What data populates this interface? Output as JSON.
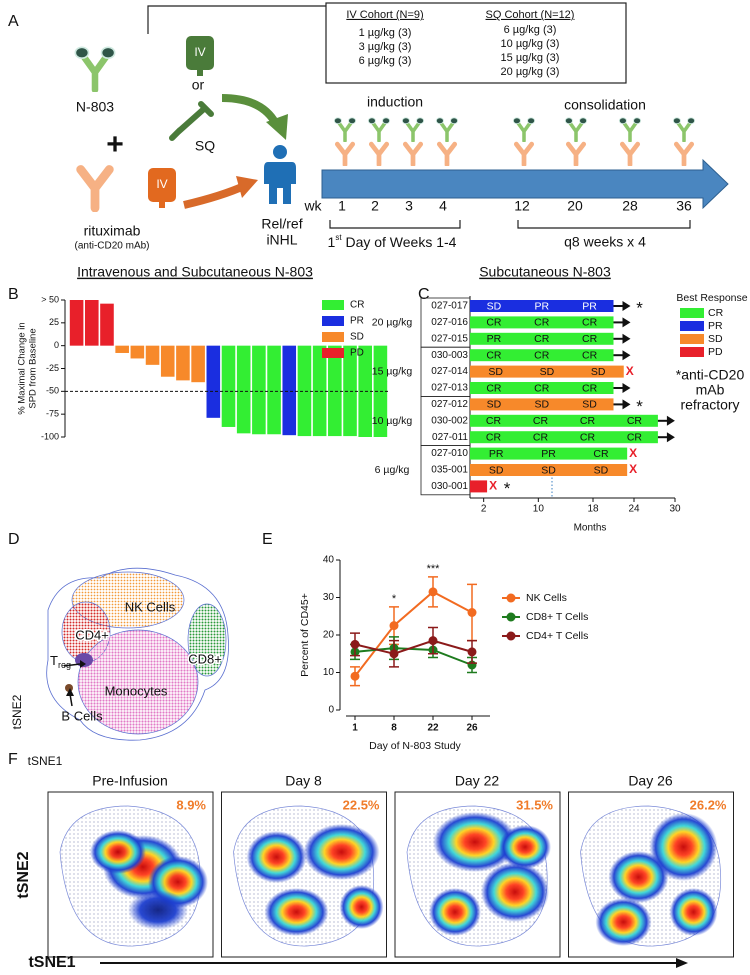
{
  "panel_a": {
    "letter": "A",
    "iv_cohort": {
      "title": "IV Cohort (N=9)",
      "doses": [
        "1 µg/kg (3)",
        "3 µg/kg (3)",
        "6 µg/kg (3)"
      ]
    },
    "sq_cohort": {
      "title": "SQ Cohort (N=12)",
      "doses": [
        "6 µg/kg (3)",
        "10 µg/kg (3)",
        "15 µg/kg (3)",
        "20 µg/kg (3)"
      ]
    },
    "n803": "N-803",
    "plus": "+",
    "rituximab": "rituximab",
    "rituximab_note": "(anti-CD20 mAb)",
    "iv_label": "IV",
    "or": "or",
    "sq_label": "SQ",
    "patient": [
      "Rel/ref",
      "iNHL"
    ],
    "phases": [
      "induction",
      "consolidation"
    ],
    "week_prefix": "wk",
    "weeks": [
      "1",
      "2",
      "3",
      "4",
      "12",
      "20",
      "28",
      "36"
    ],
    "induction_note": {
      "ordinal": "1",
      "suffix": "st",
      "text": " Day of Weeks 1-4"
    },
    "consolidation_note": "q8 weeks x 4"
  },
  "panel_b": {
    "letter": "B",
    "type": "bar",
    "title": "Intravenous and Subcutaneous N-803",
    "y_label": [
      "% Maximal Change in",
      "SPD from Baseline"
    ],
    "values": [
      50,
      50,
      46,
      -8,
      -14,
      -21,
      -34,
      -38,
      -40,
      -79,
      -89,
      -96,
      -97,
      -97,
      -98,
      -99,
      -99,
      -99,
      -99,
      -100,
      -100
    ],
    "colors": [
      "#e8202a",
      "#e8202a",
      "#e8202a",
      "#f7892a",
      "#f7892a",
      "#f7892a",
      "#f7892a",
      "#f7892a",
      "#f7892a",
      "#1a2ee0",
      "#33ee33",
      "#33ee33",
      "#33ee33",
      "#33ee33",
      "#1a2ee0",
      "#33ee33",
      "#33ee33",
      "#33ee33",
      "#33ee33",
      "#33ee33",
      "#33ee33"
    ],
    "ylim": [
      -100,
      50
    ],
    "yticks": [
      {
        "value": 50,
        "label": "> 50"
      },
      25,
      0,
      -25,
      -50,
      -75,
      -100
    ],
    "reference_line": -50,
    "legend": [
      {
        "name": "CR",
        "color": "#33ee33"
      },
      {
        "name": "PR",
        "color": "#1a2ee0"
      },
      {
        "name": "SD",
        "color": "#f7892a"
      },
      {
        "name": "PD",
        "color": "#e8202a"
      }
    ]
  },
  "panel_c": {
    "letter": "C",
    "type": "swimmer",
    "title": "Subcutaneous N-803",
    "x_label": "Months",
    "xlim": [
      0,
      30
    ],
    "xticks": [
      2,
      10,
      18,
      24,
      30
    ],
    "reference_line": 12,
    "legend_title": "Best Response",
    "legend": [
      {
        "name": "CR",
        "color": "#33ee33"
      },
      {
        "name": "PR",
        "color": "#1a2ee0"
      },
      {
        "name": "SD",
        "color": "#f7892a"
      },
      {
        "name": "PD",
        "color": "#e8202a"
      }
    ],
    "note": [
      "*anti-CD20",
      "mAb",
      "refractory"
    ],
    "groups": [
      {
        "label": "20 µg/kg",
        "rows": [
          {
            "id": "027-017",
            "color": "#1a2ee0",
            "months": 21,
            "segments": [
              "SD",
              "PR",
              "PR"
            ],
            "ongoing": true,
            "marker": "*"
          },
          {
            "id": "027-016",
            "color": "#33ee33",
            "months": 21,
            "segments": [
              "CR",
              "CR",
              "CR"
            ],
            "ongoing": true
          },
          {
            "id": "027-015",
            "color": "#33ee33",
            "months": 21,
            "segments": [
              "PR",
              "CR",
              "CR"
            ],
            "ongoing": true
          }
        ]
      },
      {
        "label": "15 µg/kg",
        "rows": [
          {
            "id": "030-003",
            "color": "#33ee33",
            "months": 21,
            "segments": [
              "CR",
              "CR",
              "CR"
            ],
            "ongoing": true
          },
          {
            "id": "027-014",
            "color": "#f7892a",
            "months": 22.5,
            "segments": [
              "SD",
              "SD",
              "SD"
            ],
            "stop": "X"
          },
          {
            "id": "027-013",
            "color": "#33ee33",
            "months": 21,
            "segments": [
              "CR",
              "CR",
              "CR"
            ],
            "ongoing": true
          }
        ]
      },
      {
        "label": "10 µg/kg",
        "rows": [
          {
            "id": "027-012",
            "color": "#f7892a",
            "months": 21,
            "segments": [
              "SD",
              "SD",
              "SD"
            ],
            "ongoing": true,
            "marker": "*"
          },
          {
            "id": "030-002",
            "color": "#33ee33",
            "months": 27.5,
            "segments": [
              "CR",
              "CR",
              "CR",
              "CR"
            ],
            "ongoing": true
          },
          {
            "id": "027-011",
            "color": "#33ee33",
            "months": 27.5,
            "segments": [
              "CR",
              "CR",
              "CR",
              "CR"
            ],
            "ongoing": true
          }
        ]
      },
      {
        "label": "6 µg/kg",
        "rows": [
          {
            "id": "027-010",
            "color": "#33ee33",
            "months": 23,
            "segments": [
              "PR",
              "PR",
              "CR"
            ],
            "stop": "X"
          },
          {
            "id": "035-001",
            "color": "#f7892a",
            "months": 23,
            "segments": [
              "SD",
              "SD",
              "SD"
            ],
            "stop": "X"
          },
          {
            "id": "030-001",
            "color": "#e8202a",
            "months": 2.5,
            "segments": [],
            "stop": "X",
            "marker": "*"
          }
        ]
      }
    ]
  },
  "panel_d": {
    "letter": "D",
    "labels": {
      "nk": "NK Cells",
      "cd4": "CD4+",
      "cd8": "CD8+",
      "treg": [
        "T",
        "reg"
      ],
      "b": "B Cells",
      "mono": "Monocytes"
    },
    "x_axis": "tSNE1",
    "y_axis": "tSNE2"
  },
  "panel_e": {
    "letter": "E",
    "type": "line",
    "y_label": "Percent of CD45+",
    "x_label": "Day of N-803 Study",
    "categories": [
      "1",
      "8",
      "22",
      "26"
    ],
    "ylim": [
      0,
      40
    ],
    "yticks": [
      0,
      10,
      20,
      30,
      40
    ],
    "series": [
      {
        "name": "NK Cells",
        "color": "#f26b21",
        "values": [
          9,
          22.5,
          31.5,
          26
        ],
        "errors": [
          2.5,
          5,
          4,
          7.5
        ]
      },
      {
        "name": "CD8+ T Cells",
        "color": "#1e7b1e",
        "values": [
          15.5,
          16.5,
          16,
          12
        ],
        "errors": [
          2,
          3,
          2,
          2
        ]
      },
      {
        "name": "CD4+ T Cells",
        "color": "#8b1a1a",
        "values": [
          17.5,
          15,
          18.5,
          15.5
        ],
        "errors": [
          3,
          3.5,
          3.5,
          3
        ]
      }
    ],
    "significance": [
      null,
      "*",
      "***",
      null
    ]
  },
  "panel_f": {
    "letter": "F",
    "plots": [
      {
        "title": "Pre-Infusion",
        "percent": "8.9%"
      },
      {
        "title": "Day 8",
        "percent": "22.5%"
      },
      {
        "title": "Day 22",
        "percent": "31.5%"
      },
      {
        "title": "Day 26",
        "percent": "26.2%"
      }
    ],
    "x_axis": "tSNE1",
    "y_axis": "tSNE2"
  }
}
